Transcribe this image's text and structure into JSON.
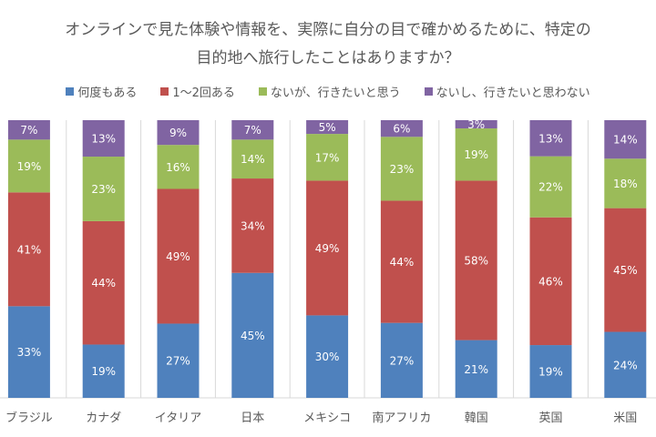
{
  "chart_data": {
    "type": "bar",
    "stacked": true,
    "normalized_percent": true,
    "title_lines": [
      "オンラインで見た体験や情報を、実際に自分の目で確かめるために、特定の",
      "目的地へ旅行したことはありますか？"
    ],
    "categories": [
      "ブラジル",
      "カナダ",
      "イタリア",
      "日本",
      "メキシコ",
      "南アフリカ",
      "韓国",
      "英国",
      "米国"
    ],
    "series": [
      {
        "name": "何度もある",
        "color": "#4F81BD",
        "values": [
          33,
          19,
          27,
          45,
          30,
          27,
          21,
          19,
          24
        ]
      },
      {
        "name": "1～2回ある",
        "color": "#C0504D",
        "values": [
          41,
          44,
          49,
          34,
          49,
          44,
          58,
          46,
          45
        ]
      },
      {
        "name": "ないが、行きたいと思う",
        "color": "#9BBB59",
        "values": [
          19,
          23,
          16,
          14,
          17,
          23,
          19,
          22,
          18
        ]
      },
      {
        "name": "ないし、行きたいと思わない",
        "color": "#8064A2",
        "values": [
          7,
          13,
          9,
          7,
          5,
          6,
          3,
          13,
          14
        ]
      }
    ],
    "value_suffix": "%",
    "legend_position": "top",
    "grid": "vertical category separators"
  }
}
